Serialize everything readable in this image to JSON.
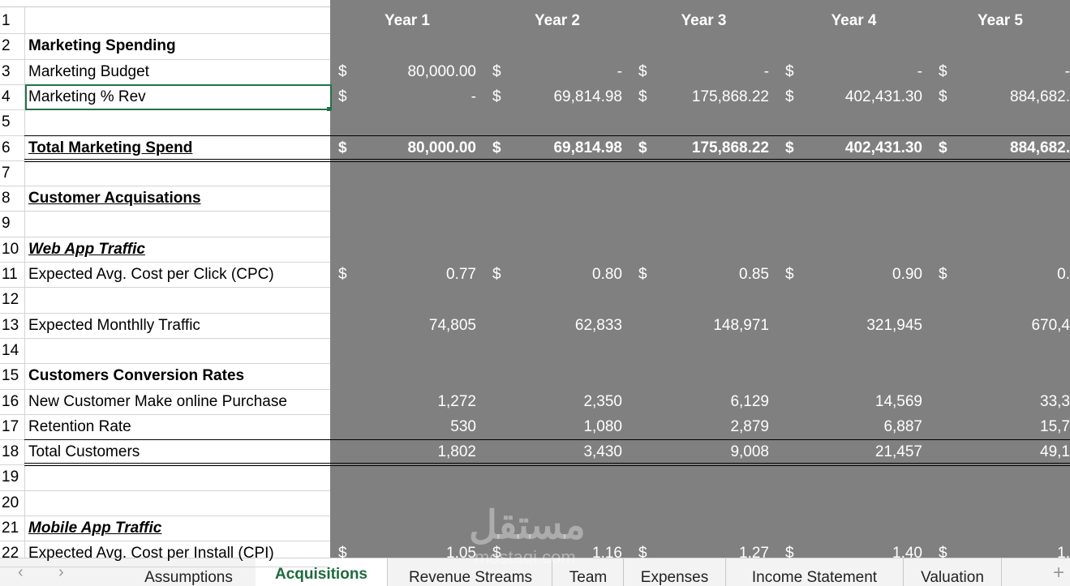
{
  "sheet": {
    "header": [
      "Year 1",
      "Year 2",
      "Year 3",
      "Year 4",
      "Year 5"
    ],
    "rows": [
      {
        "num": "1"
      },
      {
        "num": "2",
        "label": "Marketing Spending"
      },
      {
        "num": "3",
        "label": "Marketing Budget",
        "cells": [
          {
            "cur": "$",
            "val": "80,000.00"
          },
          {
            "cur": "$",
            "val": "-"
          },
          {
            "cur": "$",
            "val": "-"
          },
          {
            "cur": "$",
            "val": "-"
          },
          {
            "cur": "$",
            "val": "-"
          }
        ]
      },
      {
        "num": "4",
        "label": "Marketing % Rev",
        "cells": [
          {
            "cur": "$",
            "val": "-"
          },
          {
            "cur": "$",
            "val": "69,814.98"
          },
          {
            "cur": "$",
            "val": "175,868.22"
          },
          {
            "cur": "$",
            "val": "402,431.30"
          },
          {
            "cur": "$",
            "val": "884,682."
          }
        ]
      },
      {
        "num": "5"
      },
      {
        "num": "6",
        "label": "Total Marketing Spend",
        "cells": [
          {
            "cur": "$",
            "val": "80,000.00"
          },
          {
            "cur": "$",
            "val": "69,814.98"
          },
          {
            "cur": "$",
            "val": "175,868.22"
          },
          {
            "cur": "$",
            "val": "402,431.30"
          },
          {
            "cur": "$",
            "val": "884,682."
          }
        ]
      },
      {
        "num": "7"
      },
      {
        "num": "8",
        "label": "Customer Acquisations"
      },
      {
        "num": "9"
      },
      {
        "num": "10",
        "label": "Web App Traffic"
      },
      {
        "num": "11",
        "label": "Expected Avg. Cost per Click (CPC)",
        "cells": [
          {
            "cur": "$",
            "val": "0.77"
          },
          {
            "cur": "$",
            "val": "0.80"
          },
          {
            "cur": "$",
            "val": "0.85"
          },
          {
            "cur": "$",
            "val": "0.90"
          },
          {
            "cur": "$",
            "val": "0."
          }
        ]
      },
      {
        "num": "12"
      },
      {
        "num": "13",
        "label": "Expected Monthlly Traffic",
        "cells": [
          {
            "val": "74,805"
          },
          {
            "val": "62,833"
          },
          {
            "val": "148,971"
          },
          {
            "val": "321,945"
          },
          {
            "val": "670,4"
          }
        ]
      },
      {
        "num": "14"
      },
      {
        "num": "15",
        "label": "Customers Conversion Rates"
      },
      {
        "num": "16",
        "label": "New Customer Make online Purchase",
        "cells": [
          {
            "val": "1,272"
          },
          {
            "val": "2,350"
          },
          {
            "val": "6,129"
          },
          {
            "val": "14,569"
          },
          {
            "val": "33,3"
          }
        ]
      },
      {
        "num": "17",
        "label": "Retention Rate",
        "cells": [
          {
            "val": "530"
          },
          {
            "val": "1,080"
          },
          {
            "val": "2,879"
          },
          {
            "val": "6,887"
          },
          {
            "val": "15,7"
          }
        ]
      },
      {
        "num": "18",
        "label": "Total  Customers",
        "cells": [
          {
            "val": "1,802"
          },
          {
            "val": "3,430"
          },
          {
            "val": "9,008"
          },
          {
            "val": "21,457"
          },
          {
            "val": "49,1"
          }
        ]
      },
      {
        "num": "19"
      },
      {
        "num": "20"
      },
      {
        "num": "21",
        "label": "Mobile App Traffic"
      },
      {
        "num": "22",
        "label": "Expected Avg. Cost per Install (CPI)",
        "cells": [
          {
            "cur": "$",
            "val": "1.05"
          },
          {
            "cur": "$",
            "val": "1.16"
          },
          {
            "cur": "$",
            "val": "1.27"
          },
          {
            "cur": "$",
            "val": "1.40"
          },
          {
            "cur": "$",
            "val": "1."
          }
        ]
      }
    ]
  },
  "tabs": [
    "Assumptions",
    "Acquisitions",
    "Revenue Streams",
    "Team",
    "Expenses",
    "Income Statement",
    "Valuation"
  ],
  "watermark": [
    "مستقل",
    "mostaqi.com"
  ]
}
